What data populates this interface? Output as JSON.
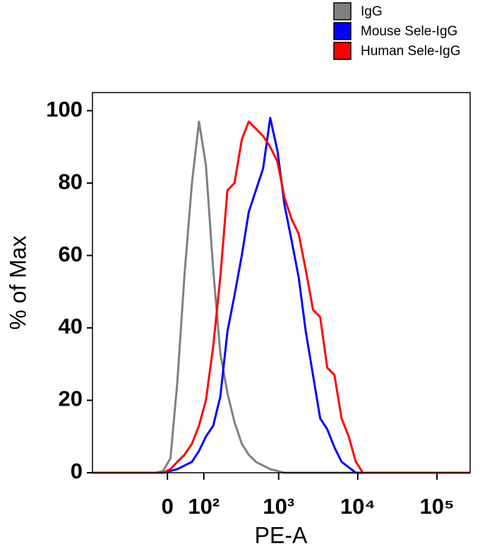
{
  "chart_data": {
    "type": "line",
    "x_label": "PE-A",
    "y_label": "% of Max",
    "x_scale": "biexponential",
    "x": [
      -345,
      -27,
      -10,
      7,
      23,
      41,
      61,
      83,
      108,
      139,
      175,
      219,
      272,
      338,
      416,
      514,
      634,
      782,
      964,
      1185,
      1461,
      1793,
      2204,
      2718,
      3350,
      4116,
      5072,
      6241,
      7679,
      9448,
      11613,
      262144
    ],
    "series": [
      {
        "name": "IgG",
        "color": "#808080",
        "values": [
          0,
          0,
          0.5,
          4,
          25,
          55,
          80,
          97,
          85,
          56,
          33,
          22,
          14,
          8,
          5,
          3,
          2,
          1,
          0.5,
          0,
          0,
          0,
          0,
          0,
          0,
          0,
          0,
          0,
          0,
          0,
          0,
          0
        ]
      },
      {
        "name": "Mouse Sele-IgG",
        "color": "#0000ff",
        "values": [
          0,
          0,
          0,
          0.5,
          1,
          2,
          3,
          6,
          10,
          13,
          21,
          39,
          49,
          60,
          72,
          78,
          84,
          98,
          89,
          74,
          64,
          54,
          39,
          27,
          15,
          12,
          7,
          3,
          1.5,
          0,
          0,
          0
        ]
      },
      {
        "name": "Human Sele-IgG",
        "color": "#ff0000",
        "values": [
          0,
          0,
          0,
          1,
          3,
          5,
          8,
          13,
          20,
          35,
          54,
          78,
          80,
          92,
          97,
          95,
          93,
          90,
          86,
          76,
          70,
          66,
          56,
          45,
          43,
          29,
          27,
          15,
          10,
          3,
          0,
          0
        ]
      }
    ],
    "xlim": [
      -345,
      262144
    ],
    "xticks": [
      0,
      {
        "value": 100,
        "label": "10²"
      },
      {
        "value": 1000,
        "label": "10³"
      },
      {
        "value": 10000,
        "label": "10⁴"
      },
      {
        "value": 100000,
        "label": "10⁵"
      }
    ],
    "ylim": [
      0,
      105
    ],
    "yticks": [
      0,
      20,
      40,
      60,
      80,
      100
    ],
    "legend": "top-right"
  }
}
